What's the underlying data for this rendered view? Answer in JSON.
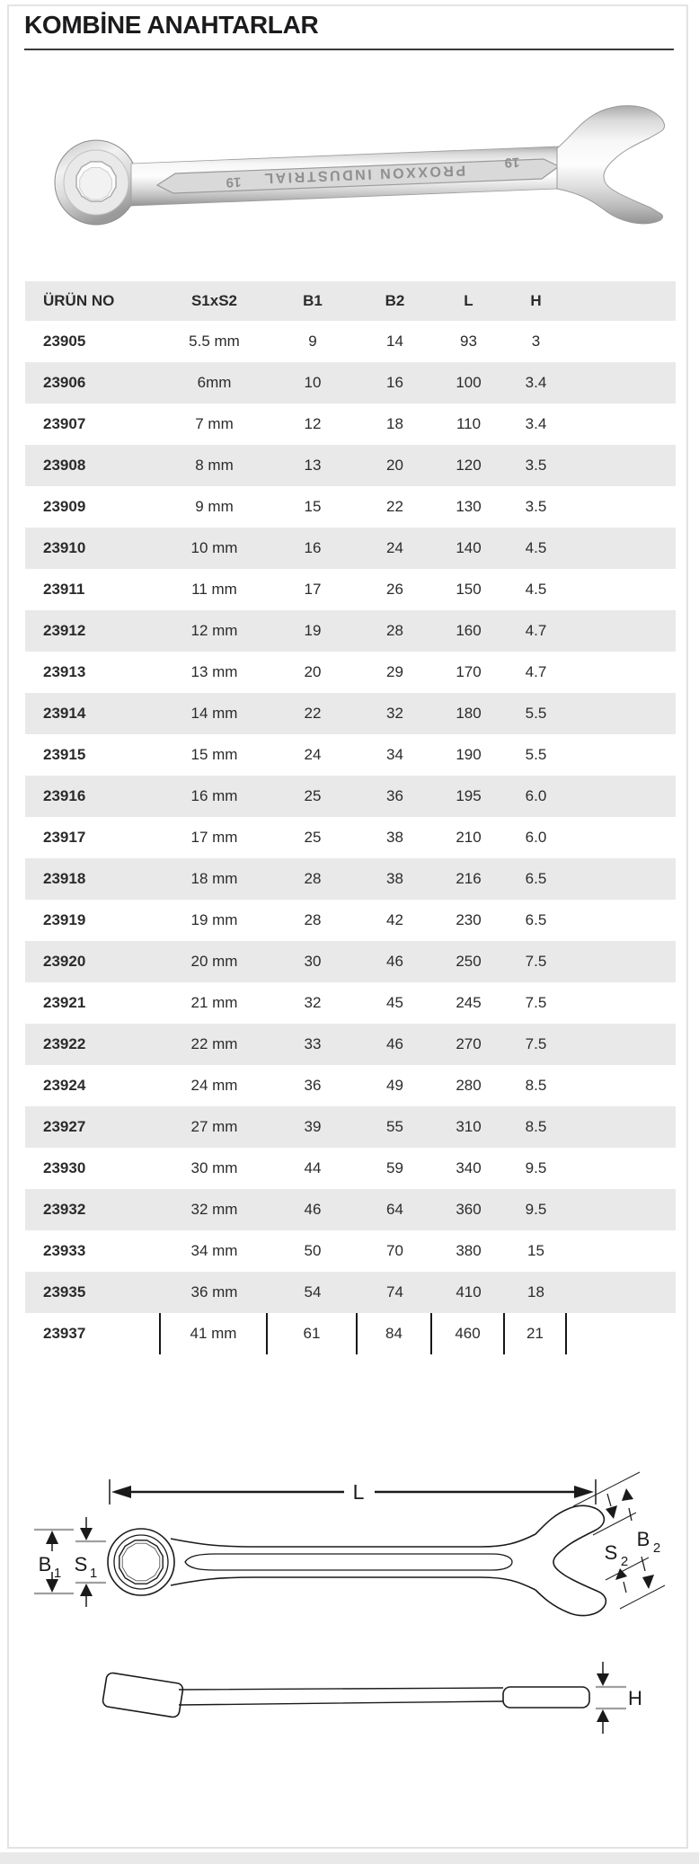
{
  "page": {
    "title": "KOMBİNE ANAHTARLAR"
  },
  "photo": {
    "brand_stamp": "PROXXON INDUSTRIAL",
    "size_stamp_left": "19",
    "size_stamp_right": "19"
  },
  "table": {
    "columns": [
      "ÜRÜN NO",
      "S1xS2",
      "B1",
      "B2",
      "L",
      "H"
    ],
    "rows": [
      [
        "23905",
        "5.5 mm",
        "9",
        "14",
        "93",
        "3"
      ],
      [
        "23906",
        "6mm",
        "10",
        "16",
        "100",
        "3.4"
      ],
      [
        "23907",
        "7 mm",
        "12",
        "18",
        "110",
        "3.4"
      ],
      [
        "23908",
        "8 mm",
        "13",
        "20",
        "120",
        "3.5"
      ],
      [
        "23909",
        "9 mm",
        "15",
        "22",
        "130",
        "3.5"
      ],
      [
        "23910",
        "10 mm",
        "16",
        "24",
        "140",
        "4.5"
      ],
      [
        "23911",
        "11 mm",
        "17",
        "26",
        "150",
        "4.5"
      ],
      [
        "23912",
        "12 mm",
        "19",
        "28",
        "160",
        "4.7"
      ],
      [
        "23913",
        "13 mm",
        "20",
        "29",
        "170",
        "4.7"
      ],
      [
        "23914",
        "14 mm",
        "22",
        "32",
        "180",
        "5.5"
      ],
      [
        "23915",
        "15 mm",
        "24",
        "34",
        "190",
        "5.5"
      ],
      [
        "23916",
        "16 mm",
        "25",
        "36",
        "195",
        "6.0"
      ],
      [
        "23917",
        "17 mm",
        "25",
        "38",
        "210",
        "6.0"
      ],
      [
        "23918",
        "18 mm",
        "28",
        "38",
        "216",
        "6.5"
      ],
      [
        "23919",
        "19 mm",
        "28",
        "42",
        "230",
        "6.5"
      ],
      [
        "23920",
        "20 mm",
        "30",
        "46",
        "250",
        "7.5"
      ],
      [
        "23921",
        "21 mm",
        "32",
        "45",
        "245",
        "7.5"
      ],
      [
        "23922",
        "22 mm",
        "33",
        "46",
        "270",
        "7.5"
      ],
      [
        "23924",
        "24 mm",
        "36",
        "49",
        "280",
        "8.5"
      ],
      [
        "23927",
        "27 mm",
        "39",
        "55",
        "310",
        "8.5"
      ],
      [
        "23930",
        "30 mm",
        "44",
        "59",
        "340",
        "9.5"
      ],
      [
        "23932",
        "32 mm",
        "46",
        "64",
        "360",
        "9.5"
      ],
      [
        "23933",
        "34 mm",
        "50",
        "70",
        "380",
        "15"
      ],
      [
        "23935",
        "36 mm",
        "54",
        "74",
        "410",
        "18"
      ],
      [
        "23937",
        "41 mm",
        "61",
        "84",
        "460",
        "21"
      ]
    ]
  },
  "diagram": {
    "length_label": "L",
    "b1": {
      "main": "B",
      "sub": "1"
    },
    "s1": {
      "main": "S",
      "sub": "1"
    },
    "s2": {
      "main": "S",
      "sub": "2"
    },
    "b2": {
      "main": "B",
      "sub": "2"
    },
    "height_label": "H"
  },
  "colors": {
    "row_alt": "#e9e9e9",
    "page_border": "#e3e3e3",
    "text": "#2b2b2b",
    "title": "#1b1b1d",
    "title_rule": "#3a3a3a",
    "dim_tick_gray": "#a0a0a0",
    "line_black": "#1a1a1a"
  }
}
